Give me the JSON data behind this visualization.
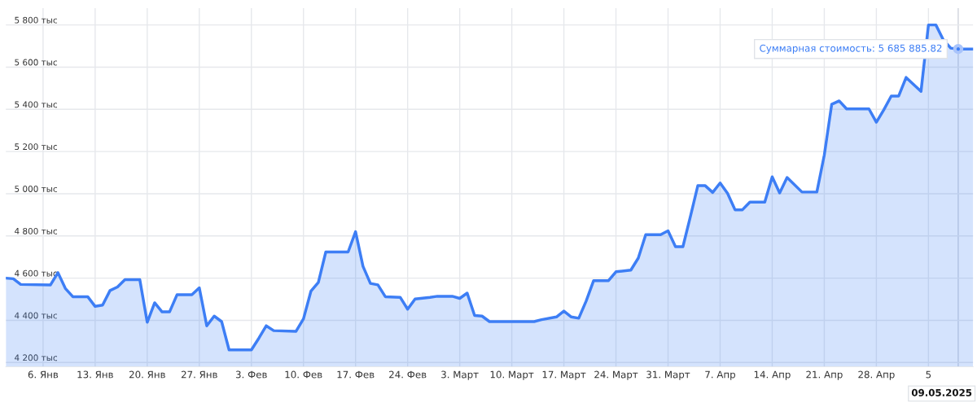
{
  "chart_data": {
    "type": "area",
    "x": [
      "2025-01-01",
      "2025-01-02",
      "2025-01-03",
      "2025-01-07",
      "2025-01-08",
      "2025-01-09",
      "2025-01-10",
      "2025-01-12",
      "2025-01-13",
      "2025-01-14",
      "2025-01-15",
      "2025-01-16",
      "2025-01-17",
      "2025-01-19",
      "2025-01-20",
      "2025-01-21",
      "2025-01-22",
      "2025-01-23",
      "2025-01-24",
      "2025-01-26",
      "2025-01-27",
      "2025-01-28",
      "2025-01-29",
      "2025-01-30",
      "2025-01-31",
      "2025-02-03",
      "2025-02-04",
      "2025-02-05",
      "2025-02-06",
      "2025-02-09",
      "2025-02-10",
      "2025-02-11",
      "2025-02-12",
      "2025-02-13",
      "2025-02-14",
      "2025-02-16",
      "2025-02-17",
      "2025-02-18",
      "2025-02-19",
      "2025-02-20",
      "2025-02-21",
      "2025-02-23",
      "2025-02-24",
      "2025-02-25",
      "2025-02-27",
      "2025-02-28",
      "2025-03-02",
      "2025-03-03",
      "2025-03-04",
      "2025-03-05",
      "2025-03-06",
      "2025-03-07",
      "2025-03-13",
      "2025-03-14",
      "2025-03-16",
      "2025-03-17",
      "2025-03-18",
      "2025-03-19",
      "2025-03-20",
      "2025-03-21",
      "2025-03-23",
      "2025-03-24",
      "2025-03-26",
      "2025-03-27",
      "2025-03-28",
      "2025-03-30",
      "2025-03-31",
      "2025-04-01",
      "2025-04-02",
      "2025-04-03",
      "2025-04-04",
      "2025-04-05",
      "2025-04-06",
      "2025-04-07",
      "2025-04-08",
      "2025-04-09",
      "2025-04-10",
      "2025-04-11",
      "2025-04-13",
      "2025-04-14",
      "2025-04-15",
      "2025-04-16",
      "2025-04-18",
      "2025-04-20",
      "2025-04-21",
      "2025-04-22",
      "2025-04-23",
      "2025-04-24",
      "2025-04-27",
      "2025-04-28",
      "2025-04-29",
      "2025-04-30",
      "2025-05-01",
      "2025-05-02",
      "2025-05-03",
      "2025-05-04",
      "2025-05-05",
      "2025-05-06",
      "2025-05-07",
      "2025-05-08",
      "2025-05-09",
      "2025-05-11"
    ],
    "series": [
      {
        "color": "#3d7ef5",
        "values": [
          4600,
          4597,
          4570,
          4568,
          4626,
          4551,
          4512,
          4512,
          4466,
          4472,
          4541,
          4558,
          4593,
          4593,
          4391,
          4483,
          4440,
          4440,
          4521,
          4521,
          4554,
          4374,
          4420,
          4394,
          4260,
          4260,
          4315,
          4374,
          4351,
          4348,
          4407,
          4538,
          4580,
          4724,
          4724,
          4724,
          4820,
          4656,
          4575,
          4568,
          4512,
          4509,
          4453,
          4501,
          4509,
          4514,
          4514,
          4504,
          4529,
          4423,
          4420,
          4394,
          4394,
          4403,
          4416,
          4444,
          4416,
          4410,
          4492,
          4588,
          4588,
          4630,
          4638,
          4695,
          4806,
          4806,
          4824,
          4749,
          4749,
          4891,
          5038,
          5038,
          5006,
          5051,
          5002,
          4924,
          4924,
          4960,
          4960,
          5080,
          5004,
          5077,
          5008,
          5008,
          5183,
          5424,
          5440,
          5402,
          5402,
          5339,
          5398,
          5463,
          5463,
          5551,
          5518,
          5485,
          5800,
          5800,
          5729,
          5690,
          5686,
          5686
        ]
      }
    ],
    "xlim": [
      "2025-01-01",
      "2025-05-11"
    ],
    "xticks": [
      {
        "value": "2025-01-06",
        "label": "6. Янв"
      },
      {
        "value": "2025-01-13",
        "label": "13. Янв"
      },
      {
        "value": "2025-01-20",
        "label": "20. Янв"
      },
      {
        "value": "2025-01-27",
        "label": "27. Янв"
      },
      {
        "value": "2025-02-03",
        "label": "3. Фев"
      },
      {
        "value": "2025-02-10",
        "label": "10. Фев"
      },
      {
        "value": "2025-02-17",
        "label": "17. Фев"
      },
      {
        "value": "2025-02-24",
        "label": "24. Фев"
      },
      {
        "value": "2025-03-03",
        "label": "3. Март"
      },
      {
        "value": "2025-03-10",
        "label": "10. Март"
      },
      {
        "value": "2025-03-17",
        "label": "17. Март"
      },
      {
        "value": "2025-03-24",
        "label": "24. Март"
      },
      {
        "value": "2025-03-31",
        "label": "31. Март"
      },
      {
        "value": "2025-04-07",
        "label": "7. Апр"
      },
      {
        "value": "2025-04-14",
        "label": "14. Апр"
      },
      {
        "value": "2025-04-21",
        "label": "21. Апр"
      },
      {
        "value": "2025-04-28",
        "label": "28. Апр"
      },
      {
        "value": "2025-05-05",
        "label": "5"
      }
    ],
    "ylim": [
      4180,
      5880
    ],
    "yticks": [
      {
        "value": 4200,
        "label": "4 200 тыс"
      },
      {
        "value": 4400,
        "label": "4 400 тыс"
      },
      {
        "value": 4600,
        "label": "4 600 тыс"
      },
      {
        "value": 4800,
        "label": "4 800 тыс"
      },
      {
        "value": 5000,
        "label": "5 000 тыс"
      },
      {
        "value": 5200,
        "label": "5 200 тыс"
      },
      {
        "value": 5400,
        "label": "5 400 тыс"
      },
      {
        "value": 5600,
        "label": "5 600 тыс"
      },
      {
        "value": 5800,
        "label": "5 800 тыс"
      }
    ],
    "grid": true,
    "ref_lines": [
      {
        "axis": "x",
        "value": "2025-05-09",
        "color": "#d0d4dc"
      }
    ],
    "annotations": [
      {
        "text": "Суммарная стоимость: 5 685 885.82",
        "x": "2025-05-09",
        "y": 5685.89
      },
      "09.05.2025"
    ]
  }
}
